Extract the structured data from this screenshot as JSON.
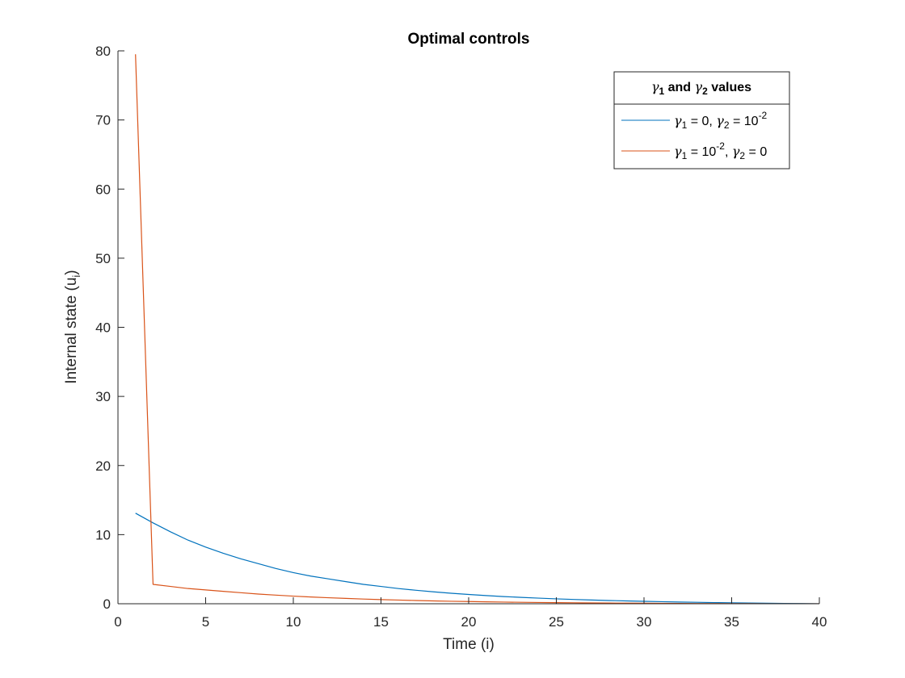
{
  "chart_data": {
    "type": "line",
    "title": "Optimal controls",
    "xlabel": {
      "main": "Time (i)"
    },
    "ylabel": {
      "main": "Internal state (u",
      "sub": "i",
      "tail": ")"
    },
    "xlim": [
      0,
      40
    ],
    "ylim": [
      0,
      80
    ],
    "xticks": [
      0,
      5,
      10,
      15,
      20,
      25,
      30,
      35,
      40
    ],
    "yticks": [
      0,
      10,
      20,
      30,
      40,
      50,
      60,
      70,
      80
    ],
    "grid": false,
    "legend": {
      "placement": "top-right",
      "title": {
        "g1": "γ",
        "s1": "1",
        "mid": " and ",
        "g2": "γ",
        "s2": "2",
        "tail": " values"
      },
      "entries": [
        {
          "g1": "γ",
          "s1": "1",
          "t1": " = 0, ",
          "g2": "γ",
          "s2": "2",
          "t2": " = 10",
          "sup": "-2",
          "t3": ""
        },
        {
          "g1": "γ",
          "s1": "1",
          "t1": " = 10",
          "sup": "-2",
          "t2": ", ",
          "g2": "γ",
          "s2": "2",
          "t3": " = 0"
        }
      ]
    },
    "series": [
      {
        "color": "#0072BD",
        "x": [
          1,
          2,
          3,
          4,
          5,
          6,
          7,
          8,
          9,
          10,
          11,
          12,
          13,
          14,
          15,
          16,
          17,
          18,
          19,
          20,
          21,
          22,
          23,
          24,
          25,
          26,
          27,
          28,
          29,
          30,
          31,
          32,
          33,
          34,
          35,
          36,
          37,
          38,
          39,
          40
        ],
        "y": [
          13.1,
          11.7,
          10.4,
          9.2,
          8.2,
          7.3,
          6.5,
          5.8,
          5.1,
          4.5,
          4.0,
          3.6,
          3.2,
          2.8,
          2.5,
          2.2,
          1.95,
          1.72,
          1.52,
          1.34,
          1.18,
          1.04,
          0.92,
          0.81,
          0.71,
          0.62,
          0.54,
          0.47,
          0.41,
          0.35,
          0.3,
          0.25,
          0.21,
          0.17,
          0.14,
          0.11,
          0.08,
          0.05,
          0.03,
          0.0
        ]
      },
      {
        "color": "#D95319",
        "x": [
          1,
          2,
          3,
          4,
          5,
          6,
          7,
          8,
          9,
          10,
          11,
          12,
          13,
          14,
          15,
          16,
          17,
          18,
          19,
          20,
          21,
          22,
          23,
          24,
          25,
          26,
          27,
          28,
          29,
          30,
          31,
          32,
          33,
          34,
          35,
          36,
          37,
          38,
          39,
          40
        ],
        "y": [
          79.5,
          2.8,
          2.5,
          2.2,
          2.0,
          1.8,
          1.6,
          1.4,
          1.25,
          1.1,
          0.98,
          0.87,
          0.77,
          0.68,
          0.6,
          0.53,
          0.47,
          0.41,
          0.36,
          0.32,
          0.28,
          0.24,
          0.21,
          0.18,
          0.16,
          0.14,
          0.12,
          0.1,
          0.085,
          0.07,
          0.058,
          0.047,
          0.037,
          0.028,
          0.02,
          0.014,
          0.009,
          0.005,
          0.002,
          0.0
        ]
      }
    ]
  }
}
